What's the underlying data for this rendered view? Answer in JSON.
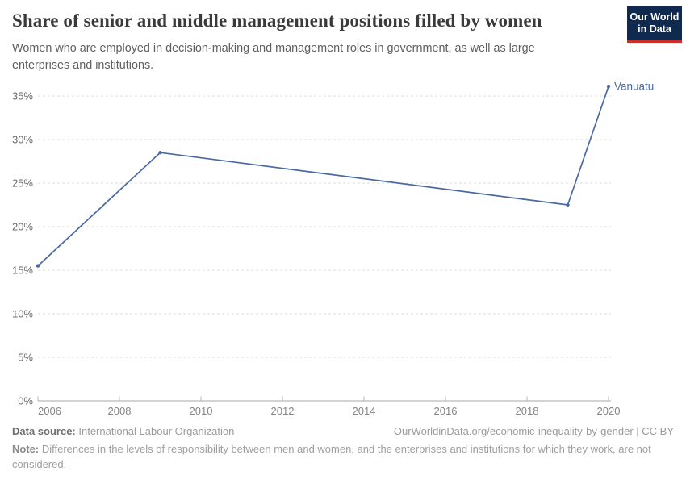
{
  "header": {
    "title": "Share of senior and middle management positions filled by women",
    "subtitle_lines": [
      "Women who are employed in decision-making and management roles in government, as well as large",
      "enterprises and institutions."
    ],
    "logo": {
      "line1": "Our World",
      "line2": "in Data"
    }
  },
  "colors": {
    "line": "#4a69a0",
    "entity_label": "#4a69a0",
    "grid": "#dedede",
    "axis": "#a9a9a9",
    "tick": "#b5b5b5",
    "y_tick_label": "#6b6b6b",
    "x_tick_label": "#858585",
    "logo_bg": "#10294f",
    "logo_accent": "#cf2b27"
  },
  "chart_data": {
    "type": "line",
    "title": "Share of senior and middle management positions filled by women",
    "xlabel": "",
    "ylabel": "",
    "xlim": [
      2006,
      2020
    ],
    "ylim": [
      0,
      35
    ],
    "x_ticks": [
      2006,
      2008,
      2010,
      2012,
      2014,
      2016,
      2018,
      2020
    ],
    "y_ticks": [
      0,
      5,
      10,
      15,
      20,
      25,
      30,
      35
    ],
    "y_tick_suffix": "%",
    "grid": "horizontal-dashed",
    "legend": "end-of-line-label",
    "series": [
      {
        "name": "Vanuatu",
        "points": [
          {
            "year": 2006,
            "value": 15.5
          },
          {
            "year": 2009,
            "value": 28.5
          },
          {
            "year": 2019,
            "value": 22.5
          },
          {
            "year": 2020,
            "value": 36.1
          }
        ]
      }
    ]
  },
  "footer": {
    "data_source_label": "Data source:",
    "data_source_value": "International Labour Organization",
    "citation": "OurWorldinData.org/economic-inequality-by-gender | CC BY",
    "note_label": "Note:",
    "note_text": "Differences in the levels of responsibility between men and women, and the enterprises and institutions for which they work, are not considered."
  }
}
